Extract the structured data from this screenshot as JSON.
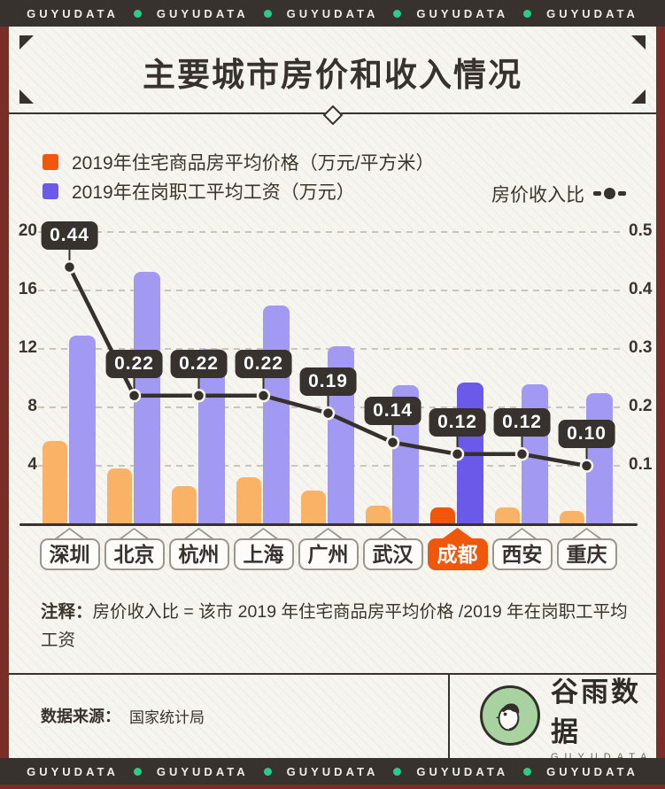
{
  "banner": {
    "text": "GUYUDATA",
    "repeat": 5,
    "dot_color": "#2BCB8C"
  },
  "title": "主要城市房价和收入情况",
  "legend": {
    "price_label": "2019年住宅商品房平均价格（万元/平方米）",
    "wage_label": "2019年在岗职工平均工资（万元）",
    "ratio_label": "房价收入比"
  },
  "colors": {
    "price_bar": "#FAB267",
    "price_highlight": "#F0570D",
    "wage_bar": "#A29AF2",
    "wage_highlight": "#6B59E9",
    "line": "#35302C",
    "badge_bg": "#38322E",
    "badge_text": "#FFFFFF",
    "grid": "#C9C5BD",
    "dark": "#38322E",
    "maroon": "#7A2E2A",
    "cream": "#F7F5EF",
    "accent_green": "#2BCB8C"
  },
  "chart_data": {
    "type": "bar",
    "subtype": "grouped bars with overlay line (dual axis)",
    "categories": [
      "深圳",
      "北京",
      "杭州",
      "上海",
      "广州",
      "武汉",
      "成都",
      "西安",
      "重庆"
    ],
    "highlight_index": 6,
    "series": [
      {
        "name": "2019年住宅商品房平均价格（万元/平方米）",
        "type": "bar",
        "axis": "left",
        "values": [
          5.7,
          3.8,
          2.6,
          3.2,
          2.3,
          1.3,
          1.15,
          1.15,
          0.9
        ]
      },
      {
        "name": "2019年在岗职工平均工资（万元）",
        "type": "bar",
        "axis": "left",
        "values": [
          12.9,
          17.3,
          12.0,
          15.0,
          12.2,
          9.5,
          9.7,
          9.6,
          9.0
        ]
      },
      {
        "name": "房价收入比",
        "type": "line",
        "axis": "right",
        "values": [
          0.44,
          0.22,
          0.22,
          0.22,
          0.19,
          0.14,
          0.12,
          0.12,
          0.1
        ],
        "labels": [
          "0.44",
          "0.22",
          "0.22",
          "0.22",
          "0.19",
          "0.14",
          "0.12",
          "0.12",
          "0.10"
        ]
      }
    ],
    "left_axis": {
      "min": 0,
      "max": 20,
      "ticks": [
        4,
        8,
        12,
        16,
        20
      ]
    },
    "right_axis": {
      "min": 0,
      "max": 0.5,
      "ticks": [
        0.1,
        0.2,
        0.3,
        0.4,
        0.5
      ]
    },
    "grid": "horizontal dashed",
    "legend_position": "top"
  },
  "note": {
    "prefix": "注释：",
    "text": "房价收入比 = 该市 2019 年住宅商品房平均价格 /2019 年在岗职工平均工资"
  },
  "footer": {
    "source_label": "数据来源：",
    "source_value": "国家统计局",
    "logo_cn": "谷雨数据",
    "logo_en": "GUYUDATA"
  }
}
